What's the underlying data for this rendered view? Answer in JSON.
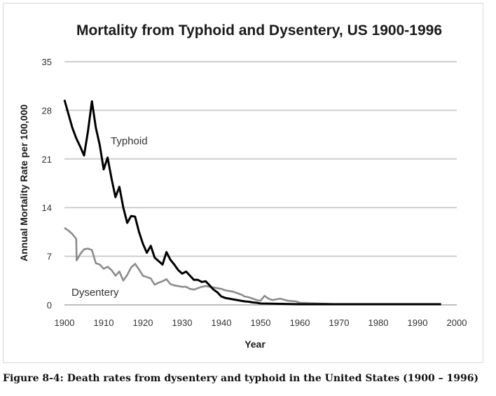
{
  "chart_data": {
    "type": "line",
    "title": "Mortality from Typhoid and Dysentery, US 1900-1996",
    "xlabel": "Year",
    "ylabel": "Annual Mortality Rate per 100,000",
    "xlim": [
      1900,
      2000
    ],
    "ylim": [
      0,
      35
    ],
    "x_ticks": [
      "1900",
      "1910",
      "1920",
      "1930",
      "1940",
      "1950",
      "1960",
      "1970",
      "1980",
      "1990",
      "2000"
    ],
    "y_ticks": [
      "0",
      "7",
      "14",
      "21",
      "28",
      "35"
    ],
    "grid": "horizontal",
    "legend": "inline labels",
    "series": [
      {
        "name": "Typhoid",
        "color": "#000000",
        "x": [
          1900,
          1901,
          1902,
          1903,
          1904,
          1905,
          1906,
          1907,
          1908,
          1909,
          1910,
          1911,
          1912,
          1913,
          1914,
          1915,
          1916,
          1917,
          1918,
          1919,
          1920,
          1921,
          1922,
          1923,
          1924,
          1925,
          1926,
          1927,
          1928,
          1929,
          1930,
          1931,
          1932,
          1933,
          1934,
          1935,
          1936,
          1937,
          1938,
          1939,
          1940,
          1941,
          1942,
          1943,
          1944,
          1945,
          1946,
          1947,
          1948,
          1949,
          1950,
          1955,
          1960,
          1970,
          1980,
          1990,
          1996
        ],
        "values": [
          29.5,
          27.5,
          25.5,
          24,
          22.8,
          21.5,
          25,
          29.3,
          25.5,
          23,
          19.5,
          21.2,
          18.2,
          15.5,
          17,
          14,
          11.8,
          12.8,
          12.7,
          10.5,
          8.8,
          7.5,
          8.5,
          6.8,
          6.3,
          5.8,
          7.6,
          6.5,
          5.8,
          5,
          4.5,
          4.8,
          4.2,
          3.6,
          3.6,
          3.3,
          3.4,
          2.8,
          2.2,
          1.8,
          1.2,
          1,
          0.9,
          0.8,
          0.7,
          0.6,
          0.5,
          0.45,
          0.35,
          0.3,
          0.2,
          0.15,
          0.1,
          0.1,
          0.1,
          0.1,
          0.1
        ]
      },
      {
        "name": "Dysentery",
        "color": "#8c8c8c",
        "x": [
          1900,
          1901,
          1902,
          1903,
          1903.1,
          1904,
          1905,
          1906,
          1907,
          1908,
          1909,
          1910,
          1911,
          1912,
          1913,
          1914,
          1915,
          1916,
          1917,
          1918,
          1919,
          1920,
          1921,
          1922,
          1923,
          1924,
          1925,
          1926,
          1927,
          1928,
          1929,
          1930,
          1931,
          1932,
          1933,
          1934,
          1935,
          1936,
          1937,
          1938,
          1939,
          1940,
          1941,
          1942,
          1943,
          1944,
          1945,
          1946,
          1947,
          1948,
          1949,
          1950,
          1951,
          1952,
          1953,
          1954,
          1955,
          1957,
          1959,
          1960,
          1970,
          1980,
          1990,
          1996
        ],
        "values": [
          11.1,
          10.7,
          10.2,
          9.5,
          6.4,
          7.3,
          8.0,
          8.1,
          7.9,
          6.0,
          5.8,
          5.2,
          5.5,
          5.0,
          4.2,
          4.8,
          3.5,
          4.3,
          5.4,
          5.9,
          5.1,
          4.2,
          4.0,
          3.8,
          2.9,
          3.2,
          3.4,
          3.7,
          3.0,
          2.8,
          2.7,
          2.6,
          2.6,
          2.3,
          2.2,
          2.4,
          2.6,
          2.7,
          2.6,
          2.5,
          2.4,
          2.3,
          2.1,
          2.0,
          1.9,
          1.7,
          1.5,
          1.2,
          1.1,
          0.9,
          0.7,
          0.6,
          1.3,
          0.9,
          0.7,
          0.8,
          0.9,
          0.6,
          0.5,
          0.3,
          0.1,
          0.1,
          0.1,
          0.1
        ]
      }
    ]
  },
  "caption": "Figure 8-4: Death rates from dysentery and typhoid in the United States (1900 – 1996)"
}
